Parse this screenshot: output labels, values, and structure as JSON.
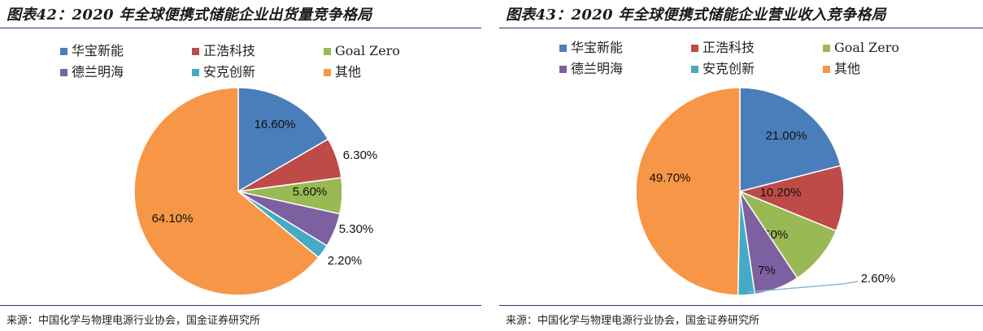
{
  "chart_data": [
    {
      "type": "pie",
      "title": "图表42：2020 年全球便携式储能企业出货量竞争格局",
      "source": "来源：中国化学与物理电源行业协会，国金证券研究所",
      "slices": [
        {
          "name": "华宝新能",
          "value": 16.6,
          "label": "16.60%",
          "color": "#4a7ebb"
        },
        {
          "name": "正浩科技",
          "value": 6.3,
          "label": "6.30%",
          "color": "#be4b48"
        },
        {
          "name": "Goal Zero",
          "value": 5.6,
          "label": "5.60%",
          "color": "#98b954"
        },
        {
          "name": "德兰明海",
          "value": 5.3,
          "label": "5.30%",
          "color": "#7d60a0"
        },
        {
          "name": "安克创新",
          "value": 2.2,
          "label": "2.20%",
          "color": "#46aac5"
        },
        {
          "name": "其他",
          "value": 64.1,
          "label": "64.10%",
          "color": "#f79646"
        }
      ],
      "legend": "top"
    },
    {
      "type": "pie",
      "title": "图表43：2020 年全球便携式储能企业营业收入竞争格局",
      "source": "来源：中国化学与物理电源行业协会，国金证券研究所",
      "slices": [
        {
          "name": "华宝新能",
          "value": 21.0,
          "label": "21.00%",
          "color": "#4a7ebb"
        },
        {
          "name": "正浩科技",
          "value": 10.2,
          "label": "10.20%",
          "color": "#be4b48"
        },
        {
          "name": "Goal Zero",
          "value": 9.5,
          "label": "9.50%",
          "color": "#98b954"
        },
        {
          "name": "德兰明海",
          "value": 7.0,
          "label": "7%",
          "color": "#7d60a0"
        },
        {
          "name": "安克创新",
          "value": 2.6,
          "label": "2.60%",
          "color": "#46aac5"
        },
        {
          "name": "其他",
          "value": 49.7,
          "label": "49.70%",
          "color": "#f79646"
        }
      ],
      "legend": "top"
    }
  ]
}
